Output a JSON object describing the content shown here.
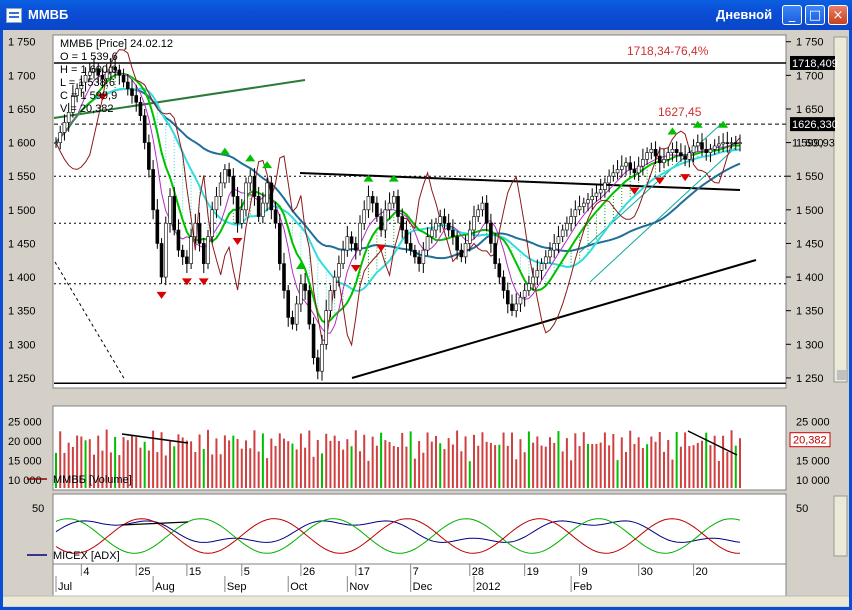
{
  "window": {
    "title": "ММВБ",
    "period": "Дневной",
    "buttons": {
      "minimize": "_",
      "maximize": "□",
      "close": "×"
    }
  },
  "colors": {
    "price_up": "#00c000",
    "price_down": "#8b0000",
    "ma_fast": "#00c000",
    "ma_slow": "#1f6f99",
    "ma_cyan": "#33dddd",
    "cloud": "#00a000",
    "arrow_up": "#00c000",
    "arrow_down": "#dd0000",
    "volume_bar": "#d04040",
    "adx_line": "#000080",
    "di_plus": "#00b000",
    "di_minus": "#c00000"
  },
  "chart_data": [
    {
      "type": "line",
      "panel": "price",
      "title": "ММВБ [Price] 24.02.12",
      "ohlc_readout": [
        "O = 1 539,6",
        "H = 1 600,0",
        "L = 1 538,6",
        "C = 1 599,9",
        "V = 20,382"
      ],
      "ylim": [
        1235,
        1760
      ],
      "y_ticks": [
        "1 750",
        "1 700",
        "1 650",
        "1 600",
        "1 550",
        "1 500",
        "1 450",
        "1 400",
        "1 350",
        "1 300",
        "1 250"
      ],
      "y_tick_values": [
        1750,
        1700,
        1650,
        1600,
        1550,
        1500,
        1450,
        1400,
        1350,
        1300,
        1250
      ],
      "x_days": 163,
      "close": [
        1600,
        1615,
        1630,
        1645,
        1670,
        1680,
        1690,
        1700,
        1705,
        1710,
        1700,
        1695,
        1705,
        1712,
        1708,
        1700,
        1690,
        1680,
        1670,
        1660,
        1640,
        1600,
        1560,
        1500,
        1450,
        1400,
        1480,
        1520,
        1470,
        1440,
        1430,
        1420,
        1460,
        1480,
        1450,
        1420,
        1460,
        1500,
        1520,
        1540,
        1560,
        1550,
        1520,
        1480,
        1500,
        1540,
        1550,
        1520,
        1490,
        1510,
        1540,
        1500,
        1480,
        1420,
        1380,
        1340,
        1330,
        1360,
        1390,
        1380,
        1330,
        1280,
        1260,
        1300,
        1350,
        1380,
        1400,
        1420,
        1440,
        1460,
        1450,
        1440,
        1480,
        1500,
        1520,
        1510,
        1490,
        1470,
        1500,
        1510,
        1520,
        1490,
        1470,
        1450,
        1440,
        1430,
        1420,
        1440,
        1460,
        1470,
        1480,
        1490,
        1480,
        1470,
        1460,
        1440,
        1430,
        1450,
        1470,
        1490,
        1500,
        1510,
        1480,
        1450,
        1420,
        1400,
        1380,
        1360,
        1350,
        1360,
        1370,
        1380,
        1390,
        1400,
        1410,
        1420,
        1430,
        1440,
        1450,
        1460,
        1470,
        1480,
        1490,
        1500,
        1505,
        1510,
        1515,
        1520,
        1525,
        1530,
        1540,
        1550,
        1555,
        1560,
        1565,
        1570,
        1560,
        1555,
        1565,
        1575,
        1585,
        1590,
        1580,
        1570,
        1575,
        1585,
        1590,
        1585,
        1580,
        1575,
        1585,
        1595,
        1600,
        1590,
        1585,
        1590,
        1595,
        1598,
        1600,
        1599,
        1600,
        1599,
        1600
      ],
      "levels": [
        {
          "value": 1718.4,
          "style": "solid",
          "label": "1718,34-76,4%",
          "tag": "1718,409"
        },
        {
          "value": 1627.45,
          "style": "dashed",
          "label": "1627,45",
          "tag": "1626,330"
        },
        {
          "value": 1550,
          "style": "dotted"
        },
        {
          "value": 1480,
          "style": "dotted"
        },
        {
          "value": 1390,
          "style": "dotted"
        },
        {
          "value": 1242,
          "style": "solid"
        }
      ],
      "last_price_tag": "1 599,93"
    },
    {
      "type": "bar",
      "panel": "volume",
      "series_name": "ММВБ [Volume]",
      "ylim": [
        8000,
        28000
      ],
      "y_ticks": [
        "25 000",
        "20 000",
        "15 000",
        "10 000"
      ],
      "y_tick_values": [
        25000,
        20000,
        15000,
        10000
      ],
      "last_value_tag": "20,382"
    },
    {
      "type": "line",
      "panel": "adx",
      "series_name": "MICEX [ADX]",
      "ylim": [
        0,
        60
      ],
      "y_ticks": [
        "50"
      ],
      "y_tick_values": [
        50
      ]
    }
  ],
  "date_axis": {
    "day_labels": [
      "4",
      "25",
      "15",
      "5",
      "26",
      "17",
      "7",
      "28",
      "19",
      "9",
      "30",
      "20"
    ],
    "day_label_positions": [
      6,
      19,
      31,
      44,
      58,
      71,
      84,
      98,
      111,
      124,
      138,
      151
    ],
    "month_labels": [
      "Jul",
      "Aug",
      "Sep",
      "Oct",
      "Nov",
      "Dec",
      "2012",
      "Feb"
    ],
    "month_label_positions": [
      0,
      23,
      40,
      55,
      69,
      84,
      99,
      122
    ]
  }
}
